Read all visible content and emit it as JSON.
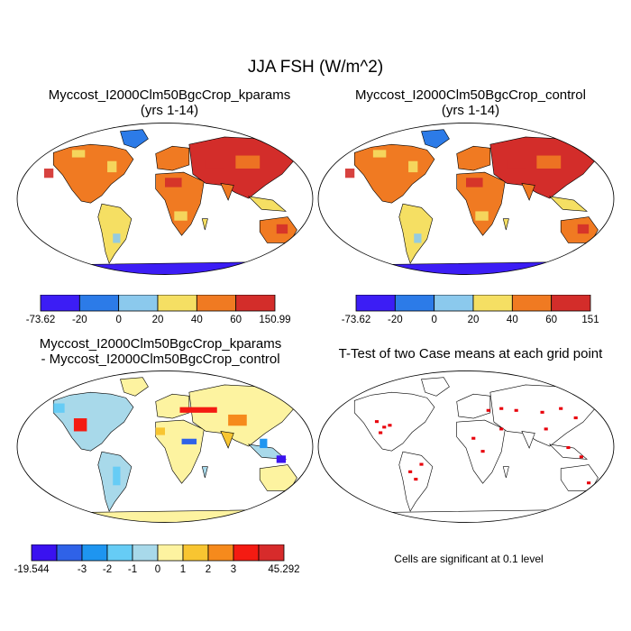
{
  "figure": {
    "title": "JJA FSH (W/m^2)",
    "footnote": "Cells are significant at 0.1 level"
  },
  "panels": [
    {
      "title_line1": "Myccost_I2000Clm50BgcCrop_kparams",
      "title_line2": "(yrs 1-14)",
      "colorbar": {
        "colors": [
          "#3c1df5",
          "#2c7be8",
          "#8bc9ed",
          "#f5df63",
          "#f07a22",
          "#d32d2a"
        ],
        "labels": [
          "-73.62",
          "-20",
          "0",
          "20",
          "40",
          "60",
          "150.99"
        ]
      }
    },
    {
      "title_line1": "Myccost_I2000Clm50BgcCrop_control",
      "title_line2": "(yrs 1-14)",
      "colorbar": {
        "colors": [
          "#3c1df5",
          "#2c7be8",
          "#8bc9ed",
          "#f5df63",
          "#f07a22",
          "#d32d2a"
        ],
        "labels": [
          "-73.62",
          "-20",
          "0",
          "20",
          "40",
          "60",
          "151"
        ]
      }
    },
    {
      "title_line1": "Myccost_I2000Clm50BgcCrop_kparams",
      "title_line2": "- Myccost_I2000Clm50BgcCrop_control",
      "colorbar": {
        "colors": [
          "#3a12f0",
          "#2f62e8",
          "#1e95f0",
          "#66ccf5",
          "#a8d9ea",
          "#fdf3a0",
          "#f8c531",
          "#f68a1c",
          "#f41b12",
          "#d72b2b"
        ],
        "labels": [
          "-19.544",
          "-3",
          "-2",
          "-1",
          "0",
          "1",
          "2",
          "3",
          "45.292"
        ]
      }
    },
    {
      "title_line1": "T-Test of two Case means at each grid point",
      "significance_color": "#e8000b"
    }
  ]
}
